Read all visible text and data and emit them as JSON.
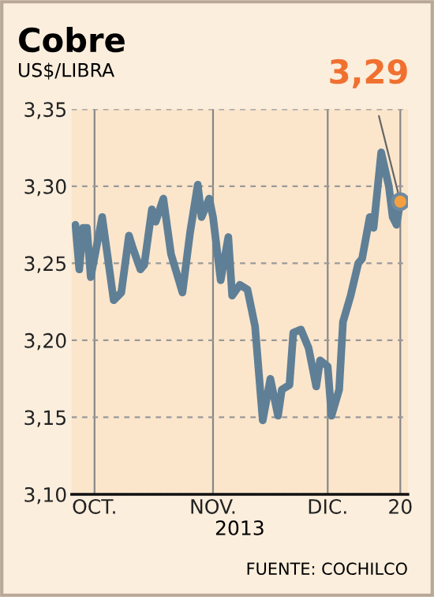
{
  "chart_data": {
    "type": "line",
    "title": "Cobre",
    "subtitle": "US$/LIBRA",
    "xlabel": "2013",
    "x": [
      "2013-09-26",
      "2013-09-27",
      "2013-09-28",
      "2013-09-29",
      "2013-09-30",
      "2013-10-03",
      "2013-10-06",
      "2013-10-08",
      "2013-10-10",
      "2013-10-11",
      "2013-10-13",
      "2013-10-14",
      "2013-10-16",
      "2013-10-17",
      "2013-10-19",
      "2013-10-21",
      "2013-10-24",
      "2013-10-26",
      "2013-10-28",
      "2013-10-29",
      "2013-10-31",
      "2013-11-01",
      "2013-11-03",
      "2013-11-05",
      "2013-11-06",
      "2013-11-08",
      "2013-11-10",
      "2013-11-12",
      "2013-11-14",
      "2013-11-16",
      "2013-11-18",
      "2013-11-19",
      "2013-11-21",
      "2013-11-22",
      "2013-11-24",
      "2013-11-26",
      "2013-11-28",
      "2013-11-29",
      "2013-12-01",
      "2013-12-02",
      "2013-12-04",
      "2013-12-05",
      "2013-12-07",
      "2013-12-09",
      "2013-12-10",
      "2013-12-12",
      "2013-12-13",
      "2013-12-15",
      "2013-12-17",
      "2013-12-18",
      "2013-12-19",
      "2013-12-20"
    ],
    "series": [
      {
        "color": "#5f7f96",
        "values": [
          3.275,
          3.246,
          3.273,
          3.273,
          3.241,
          3.28,
          3.226,
          3.231,
          3.268,
          3.26,
          3.246,
          3.249,
          3.285,
          3.277,
          3.292,
          3.256,
          3.231,
          3.27,
          3.301,
          3.28,
          3.292,
          3.28,
          3.239,
          3.267,
          3.229,
          3.236,
          3.233,
          3.209,
          3.148,
          3.175,
          3.151,
          3.168,
          3.171,
          3.205,
          3.207,
          3.195,
          3.17,
          3.187,
          3.183,
          3.151,
          3.168,
          3.212,
          3.229,
          3.25,
          3.253,
          3.28,
          3.273,
          3.322,
          3.3,
          3.28,
          3.275,
          3.29
        ]
      }
    ],
    "xlim": [
      "2013-09-25",
      "2013-12-22"
    ],
    "xticks": [
      {
        "value": "2013-10-01",
        "label": "OCT."
      },
      {
        "value": "2013-11-01",
        "label": "NOV."
      },
      {
        "value": "2013-12-01",
        "label": "DIC."
      },
      {
        "value": "2013-12-20",
        "label": "20"
      }
    ],
    "ylim": [
      3.1,
      3.35
    ],
    "yticks": [
      {
        "value": 3.1,
        "label": "3,10"
      },
      {
        "value": 3.15,
        "label": "3,15"
      },
      {
        "value": 3.2,
        "label": "3,20"
      },
      {
        "value": 3.25,
        "label": "3,25"
      },
      {
        "value": 3.3,
        "label": "3,30"
      },
      {
        "value": 3.35,
        "label": "3,35"
      }
    ],
    "grid": true,
    "line_style": "solid",
    "annotations": [
      {
        "text": "3,29",
        "x": "2013-12-20",
        "y": 3.29
      },
      "FUENTE: COCHILCO"
    ]
  }
}
